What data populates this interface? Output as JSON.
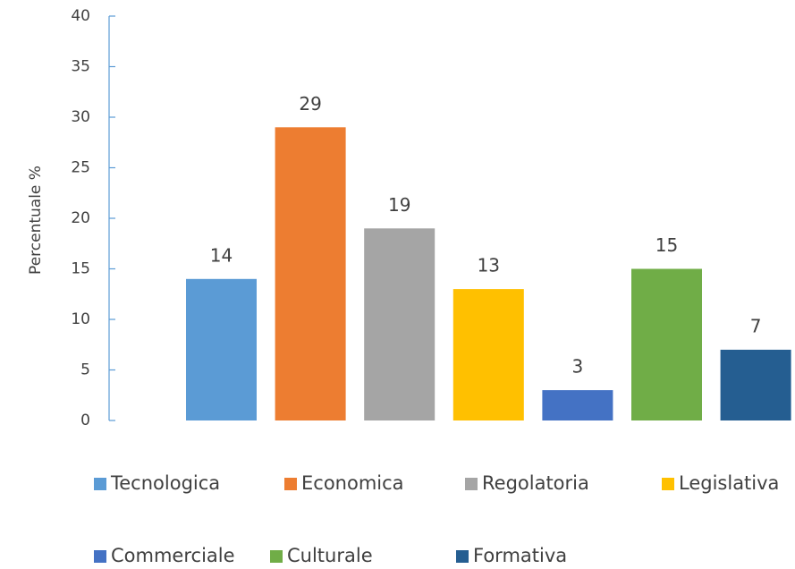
{
  "chart_data": {
    "type": "bar",
    "y_axis_label": "Percentuale %",
    "ylim": [
      0,
      40
    ],
    "yticks": [
      0,
      5,
      10,
      15,
      20,
      25,
      30,
      35,
      40
    ],
    "series": [
      {
        "name": "Tecnologica",
        "color": "#5b9bd5",
        "values": [
          14
        ]
      },
      {
        "name": "Economica",
        "color": "#ed7d31",
        "values": [
          29
        ]
      },
      {
        "name": "Regolatoria",
        "color": "#a5a5a5",
        "values": [
          19
        ]
      },
      {
        "name": "Legislativa",
        "color": "#ffc000",
        "values": [
          13
        ]
      },
      {
        "name": "Commerciale",
        "color": "#4472c4",
        "values": [
          3
        ]
      },
      {
        "name": "Culturale",
        "color": "#70ad47",
        "values": [
          15
        ]
      },
      {
        "name": "Formativa",
        "color": "#255e91",
        "values": [
          7
        ]
      }
    ],
    "legend": "bottom"
  }
}
